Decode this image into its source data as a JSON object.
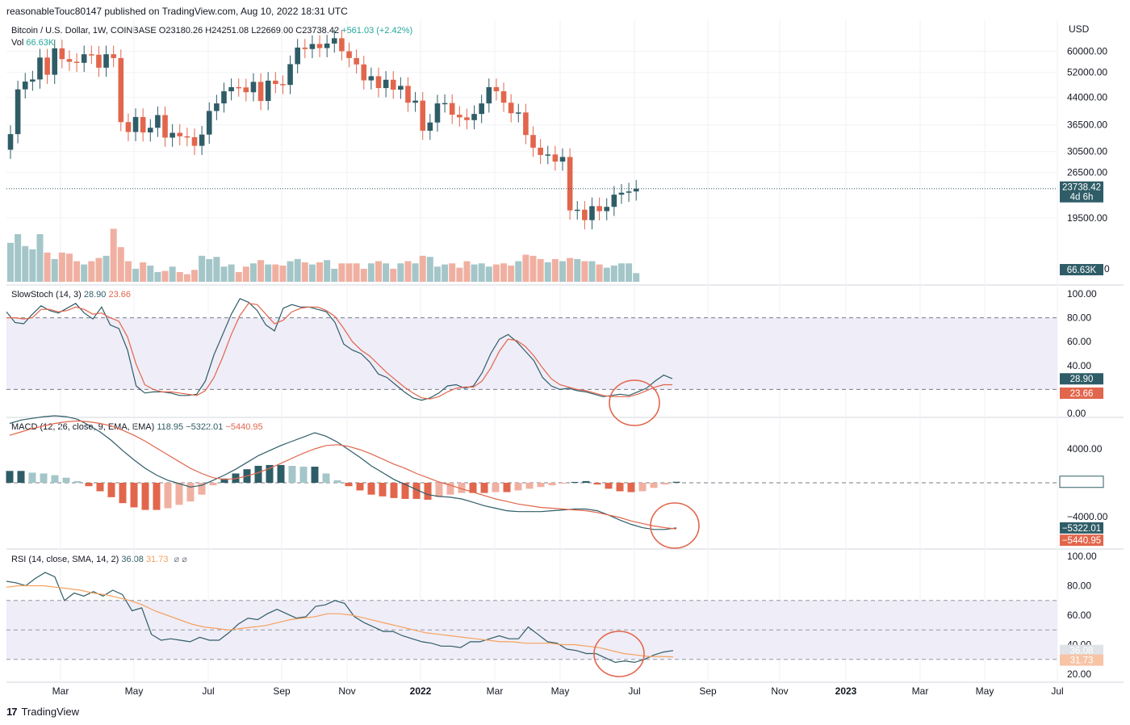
{
  "header": {
    "published": "reasonableTouc80147 published on TradingView.com, Aug 10, 2022 18:31 UTC"
  },
  "price_pane": {
    "title": "Bitcoin / U.S. Dollar, 1W, COINBASE",
    "open": "O23180.26",
    "high": "H24251.08",
    "low": "L22669.00",
    "close": "C23738.42",
    "change": "+561.03 (+2.42%)",
    "vol_label": "Vol",
    "vol_value": "66.63K",
    "currency": "USD",
    "last_price": "23738.42",
    "countdown": "4d 6h",
    "vol_tag": "66.63K",
    "vol_tag_partial": "0"
  },
  "stoch_pane": {
    "title": "SlowStoch (14, 3)",
    "k": "28.90",
    "d": "23.66",
    "tag_k": "28.90",
    "tag_d": "23.66"
  },
  "macd_pane": {
    "title": "MACD (12, 26, close, 9, EMA, EMA)",
    "hist": "118.95",
    "macd": "−5322.01",
    "signal": "−5440.95",
    "tag_hist": "118.95",
    "tag_macd": "−5322.01",
    "tag_signal": "−5440.95"
  },
  "rsi_pane": {
    "title": "RSI (14, close, SMA, 14, 2)",
    "rsi": "36.08",
    "sma": "31.73",
    "icons": "⌀ ⌀",
    "tag_rsi": "36.08",
    "tag_sma": "31.73"
  },
  "footer": {
    "brand": "TradingView",
    "logo": "17"
  },
  "colors": {
    "up": "#2f5d67",
    "down": "#e2664c",
    "vol_up": "#a4c6c9",
    "vol_down": "#f0b0a1",
    "stoch_k": "#2f5d67",
    "stoch_d": "#e2664c",
    "rsi": "#2f5d67",
    "rsi_sma": "#f5a25d",
    "band": "#efedf8",
    "annotation": "#e2664c",
    "tag_dark": "#2f5d67",
    "tag_red": "#e2664c"
  },
  "chart_data": [
    {
      "type": "candlestick",
      "title": "Bitcoin / U.S. Dollar, 1W, COINBASE",
      "x_tick_labels": [
        "Mar",
        "May",
        "Jul",
        "Sep",
        "Nov",
        "2022",
        "Mar",
        "May",
        "Jul",
        "Sep",
        "Nov",
        "2023",
        "Mar",
        "May",
        "Jul"
      ],
      "y_tick_labels": [
        "60000.00",
        "52000.00",
        "44000.00",
        "36500.00",
        "30500.00",
        "26500.00",
        "19500.00"
      ],
      "ylabel": "USD",
      "y_scale": "log",
      "last_price": 23738.42,
      "close_series": [
        34300,
        46400,
        48900,
        49600,
        57500,
        51200,
        61200,
        56900,
        55900,
        55500,
        58800,
        58600,
        53700,
        58800,
        57300,
        37200,
        34800,
        38500,
        34700,
        35800,
        39000,
        33500,
        34600,
        33800,
        33600,
        31700,
        34200,
        40100,
        42200,
        45800,
        47100,
        47000,
        45500,
        48800,
        42900,
        49200,
        48100,
        47800,
        55000,
        61500,
        60900,
        63000,
        61300,
        63200,
        65500,
        60000,
        57300,
        54900,
        49300,
        50700,
        46800,
        49500,
        46300,
        47500,
        42400,
        43000,
        35100,
        37100,
        42200,
        42300,
        39100,
        38400,
        37700,
        39300,
        42200,
        47100,
        45800,
        42400,
        39500,
        39700,
        34100,
        31300,
        29800,
        29900,
        28500,
        29400,
        20500,
        20600,
        19200,
        21100,
        20400,
        21000,
        22800,
        23100,
        23300,
        23738
      ],
      "volume_series": [
        36,
        44,
        33,
        30,
        44,
        27,
        21,
        27,
        26,
        19,
        16,
        19,
        22,
        24,
        49,
        32,
        19,
        12,
        18,
        15,
        9,
        10,
        14,
        9,
        7,
        11,
        24,
        21,
        23,
        14,
        16,
        9,
        14,
        17,
        20,
        16,
        16,
        15,
        19,
        21,
        18,
        16,
        18,
        20,
        12,
        17,
        17,
        17,
        12,
        17,
        19,
        17,
        12,
        17,
        19,
        17,
        24,
        23,
        14,
        16,
        17,
        13,
        19,
        16,
        17,
        14,
        16,
        17,
        15,
        19,
        25,
        24,
        21,
        18,
        21,
        19,
        22,
        21,
        19,
        19,
        16,
        13,
        15,
        17,
        17,
        8
      ]
    },
    {
      "type": "line",
      "title": "SlowStoch (14, 3)",
      "y_tick_labels": [
        "100.00",
        "80.00",
        "60.00",
        "40.00",
        "0.00"
      ],
      "ylim": [
        0,
        100
      ],
      "bands": [
        20,
        80
      ],
      "series": [
        {
          "name": "%K",
          "values": [
            85,
            76,
            75,
            83,
            90,
            86,
            84,
            88,
            92,
            84,
            79,
            89,
            74,
            71,
            53,
            23,
            17,
            18,
            18,
            17,
            15,
            15,
            16,
            27,
            49,
            66,
            83,
            96,
            93,
            86,
            74,
            69,
            88,
            91,
            89,
            89,
            87,
            85,
            76,
            58,
            53,
            50,
            43,
            33,
            30,
            24,
            18,
            13,
            11,
            13,
            17,
            23,
            24,
            21,
            23,
            34,
            50,
            62,
            66,
            60,
            52,
            44,
            30,
            23,
            20,
            21,
            19,
            18,
            16,
            14,
            15,
            16,
            15,
            18,
            21,
            27,
            32,
            29
          ]
        },
        {
          "name": "%D",
          "values": [
            80,
            80,
            79,
            80,
            87,
            87,
            85,
            86,
            89,
            87,
            83,
            84,
            80,
            77,
            64,
            41,
            24,
            20,
            18,
            18,
            17,
            16,
            15,
            19,
            30,
            47,
            66,
            82,
            92,
            91,
            83,
            75,
            78,
            85,
            88,
            89,
            89,
            86,
            81,
            71,
            60,
            53,
            48,
            41,
            34,
            28,
            22,
            17,
            13,
            12,
            14,
            18,
            21,
            22,
            22,
            27,
            38,
            52,
            62,
            61,
            56,
            48,
            38,
            29,
            24,
            22,
            20,
            19,
            17,
            15,
            14,
            14,
            14,
            16,
            19,
            22,
            24,
            24
          ]
        }
      ]
    },
    {
      "type": "line",
      "title": "MACD (12, 26, close, 9, EMA, EMA)",
      "y_tick_labels": [
        "4000.00",
        "−4000.00"
      ],
      "ylim": [
        -8000,
        8000
      ],
      "series": [
        {
          "name": "MACD",
          "values": [
            7000,
            7400,
            7600,
            7800,
            7900,
            7800,
            7500,
            6800,
            6000,
            5000,
            3800,
            2700,
            1700,
            900,
            300,
            -100,
            -500,
            -300,
            300,
            900,
            1600,
            2400,
            3200,
            3800,
            4400,
            4900,
            5400,
            5900,
            5500,
            4800,
            3900,
            3000,
            2000,
            1200,
            400,
            -200,
            -800,
            -1400,
            -1600,
            -1700,
            -1900,
            -2300,
            -2700,
            -3000,
            -3300,
            -3400,
            -3400,
            -3400,
            -3300,
            -3200,
            -3100,
            -3100,
            -3300,
            -3800,
            -4400,
            -4900,
            -5300,
            -5500,
            -5500,
            -5322
          ]
        },
        {
          "name": "Signal",
          "values": [
            5600,
            6000,
            6400,
            6700,
            7000,
            7200,
            7300,
            7200,
            7000,
            6700,
            6200,
            5600,
            4900,
            4100,
            3300,
            2500,
            1700,
            1100,
            600,
            400,
            500,
            800,
            1200,
            1700,
            2300,
            2900,
            3500,
            4000,
            4400,
            4500,
            4300,
            3900,
            3400,
            2800,
            2200,
            1700,
            1100,
            600,
            100,
            -300,
            -700,
            -1100,
            -1500,
            -1900,
            -2200,
            -2500,
            -2700,
            -2900,
            -3000,
            -3100,
            -3200,
            -3300,
            -3500,
            -3800,
            -4100,
            -4500,
            -4800,
            -5100,
            -5300,
            -5440.95
          ]
        },
        {
          "name": "Histogram",
          "values": [
            1400,
            1400,
            1200,
            1100,
            900,
            600,
            200,
            -400,
            -1000,
            -1700,
            -2400,
            -2900,
            -3200,
            -3200,
            -3000,
            -2600,
            -2200,
            -1400,
            -300,
            500,
            1100,
            1600,
            2000,
            2100,
            2100,
            2000,
            1900,
            1900,
            1100,
            300,
            -400,
            -900,
            -1400,
            -1600,
            -1800,
            -1900,
            -1900,
            -2000,
            -1700,
            -1400,
            -1200,
            -1200,
            -1200,
            -1100,
            -1100,
            -900,
            -700,
            -500,
            -300,
            -100,
            100,
            200,
            -200,
            -700,
            -1000,
            -1100,
            -1000,
            -600,
            -200,
            118.95
          ]
        }
      ]
    },
    {
      "type": "line",
      "title": "RSI (14, close, SMA, 14, 2)",
      "y_tick_labels": [
        "100.00",
        "80.00",
        "60.00",
        "40.00",
        "20.00"
      ],
      "ylim": [
        20,
        100
      ],
      "bands": [
        30,
        70
      ],
      "series": [
        {
          "name": "RSI",
          "values": [
            83,
            82,
            80,
            85,
            89,
            86,
            70,
            75,
            73,
            76,
            73,
            77,
            74,
            63,
            65,
            47,
            43,
            44,
            43,
            42,
            45,
            43,
            43,
            48,
            54,
            58,
            57,
            61,
            64,
            61,
            58,
            59,
            66,
            67,
            70,
            68,
            59,
            55,
            52,
            49,
            49,
            46,
            44,
            42,
            41,
            39,
            39,
            38,
            42,
            42,
            44,
            46,
            44,
            44,
            52,
            47,
            42,
            41,
            37,
            36,
            34,
            34,
            31,
            28,
            29,
            28,
            30,
            33,
            35,
            36
          ]
        },
        {
          "name": "RSI-SMA",
          "values": [
            79,
            80,
            80,
            80,
            79,
            78,
            77,
            75,
            74,
            72,
            70,
            67,
            63,
            60,
            57,
            54,
            52,
            51,
            50,
            51,
            52,
            53,
            55,
            57,
            58,
            59,
            61,
            61,
            60,
            58,
            56,
            54,
            52,
            50,
            48,
            47,
            46,
            45,
            44,
            43,
            42,
            42,
            41,
            41,
            41,
            40,
            40,
            39,
            38,
            36,
            34,
            33,
            32,
            32,
            31.7
          ]
        }
      ]
    }
  ]
}
